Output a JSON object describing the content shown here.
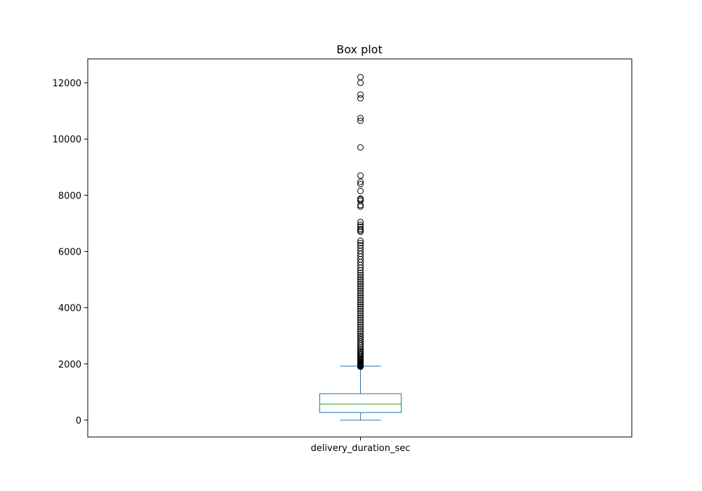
{
  "chart_data": {
    "type": "box",
    "title": "Box plot",
    "xlabel": "",
    "ylabel": "",
    "categories": [
      "delivery_duration_sec"
    ],
    "ylim": [
      -600,
      12850
    ],
    "yticks": [
      0,
      2000,
      4000,
      6000,
      8000,
      10000,
      12000
    ],
    "grid": false,
    "colors": {
      "box": "#1f77b4",
      "median": "#2ca02c",
      "outlier": "#000000",
      "axes": "#000000"
    },
    "box": {
      "whisker_low": 0,
      "q1": 270,
      "median": 570,
      "q3": 940,
      "whisker_high": 1920
    },
    "outliers": [
      1900,
      1920,
      1935,
      1950,
      1965,
      1980,
      2000,
      2020,
      2045,
      2070,
      2100,
      2130,
      2160,
      2200,
      2240,
      2280,
      2330,
      2380,
      2430,
      2480,
      2540,
      2600,
      2660,
      2720,
      2790,
      2860,
      2930,
      3000,
      3080,
      3160,
      3240,
      3320,
      3400,
      3480,
      3560,
      3640,
      3720,
      3800,
      3880,
      3960,
      4040,
      4120,
      4200,
      4280,
      4360,
      4440,
      4520,
      4600,
      4680,
      4760,
      4840,
      4920,
      5000,
      5080,
      5160,
      5240,
      5330,
      5420,
      5520,
      5620,
      5720,
      5820,
      5920,
      6020,
      6120,
      6220,
      6300,
      6380,
      6700,
      6750,
      6800,
      6880,
      6950,
      7050,
      7600,
      7650,
      7800,
      7850,
      7880,
      8150,
      8400,
      8480,
      8700,
      9700,
      10650,
      10750,
      11450,
      11580,
      12000,
      12200
    ]
  }
}
